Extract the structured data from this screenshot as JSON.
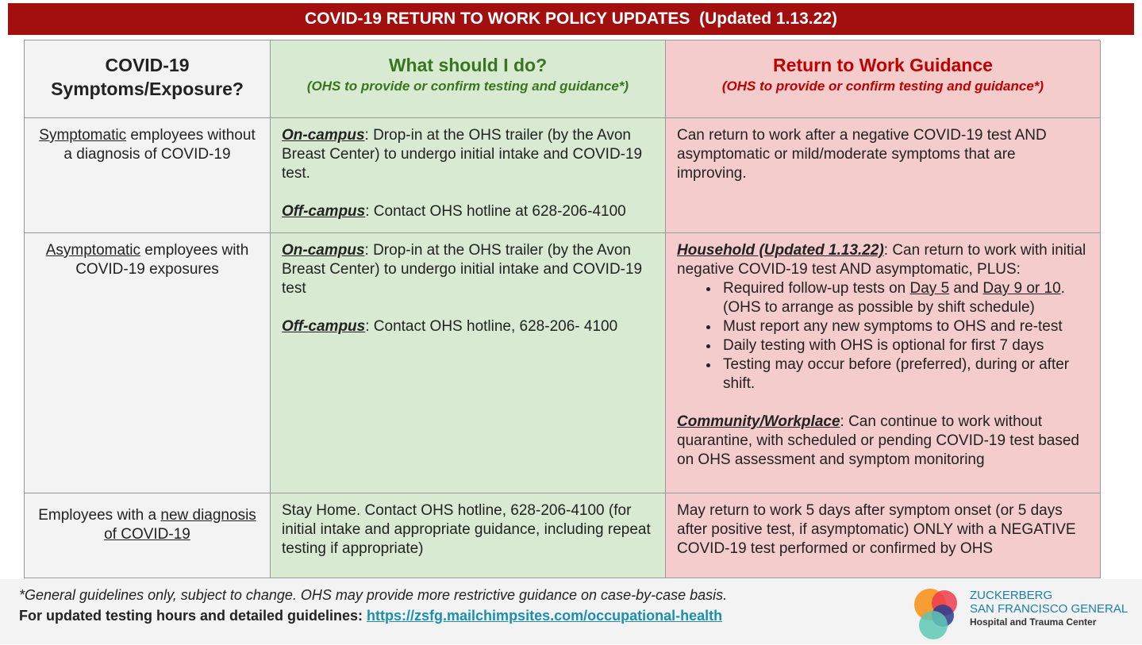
{
  "title": "COVID-19 RETURN TO WORK POLICY UPDATES  (Updated 1.13.22)",
  "table": {
    "header": [
      {
        "title": "COVID-19 Symptoms/Exposure?"
      },
      {
        "title": "What should I do?",
        "subtitle": "(OHS to provide or confirm testing and guidance*)"
      },
      {
        "title": "Return to Work Guidance",
        "subtitle": "(OHS to provide or confirm testing and guidance*)"
      }
    ],
    "rows": [
      {
        "situation": [
          "Symptomatic",
          " employees without a diagnosis of COVID-19"
        ],
        "action": {
          "on_campus": {
            "label": "On-campus",
            "text": ": Drop-in at the OHS trailer (by the Avon Breast Center) to undergo initial intake and COVID-19 test."
          },
          "off_campus": {
            "label": "Off-campus",
            "text": ": Contact OHS hotline at 628-206-4100"
          }
        },
        "guidance": "Can return to work after a negative COVID-19 test AND asymptomatic or mild/moderate symptoms that are improving."
      },
      {
        "situation": [
          "Asymptomatic",
          " employees with COVID-19 exposures"
        ],
        "action": {
          "on_campus": {
            "label": "On-campus",
            "text": ": Drop-in at the OHS trailer (by the Avon Breast Center) to undergo initial intake and COVID-19 test"
          },
          "off_campus": {
            "label": "Off-campus",
            "text": ": Contact OHS hotline, 628-206- 4100"
          }
        },
        "guidance": {
          "household": {
            "label": "Household (Updated 1.13.22)",
            "text": ": Can return to work with initial negative COVID-19 test AND asymptomatic, PLUS:",
            "bullets": [
              [
                "Required follow-up tests on ",
                "Day 5",
                " and ",
                "Day 9 or 10",
                ". (OHS to arrange as possible by shift schedule)"
              ],
              "Must report any new symptoms to OHS and re-test",
              "Daily testing with OHS is optional for first 7 days",
              "Testing may occur before (preferred), during or after shift."
            ]
          },
          "community": {
            "label": "Community/Workplace",
            "text": ": Can continue to work without quarantine, with scheduled or pending COVID-19 test based on OHS assessment and symptom monitoring"
          }
        }
      },
      {
        "situation": [
          "Employees with a ",
          "new diagnosis of COVID-19"
        ],
        "action": "Stay Home. Contact OHS hotline, 628-206-4100 (for initial intake and appropriate guidance, including repeat testing if appropriate)",
        "guidance": "May return to work 5 days after symptom onset (or 5 days after positive test, if asymptomatic) ONLY with a NEGATIVE COVID-19 test performed or confirmed by OHS"
      }
    ]
  },
  "footer": {
    "note": "*General guidelines only, subject to change. OHS may provide more restrictive guidance on case-by-case basis.",
    "link_label": "For updated testing hours and detailed guidelines:",
    "link": "https://zsfg.mailchimpsites.com/occupational-health"
  },
  "logo": {
    "line1": "ZUCKERBERG",
    "line2": "SAN FRANCISCO GENERAL",
    "line3": "Hospital and Trauma Center"
  }
}
